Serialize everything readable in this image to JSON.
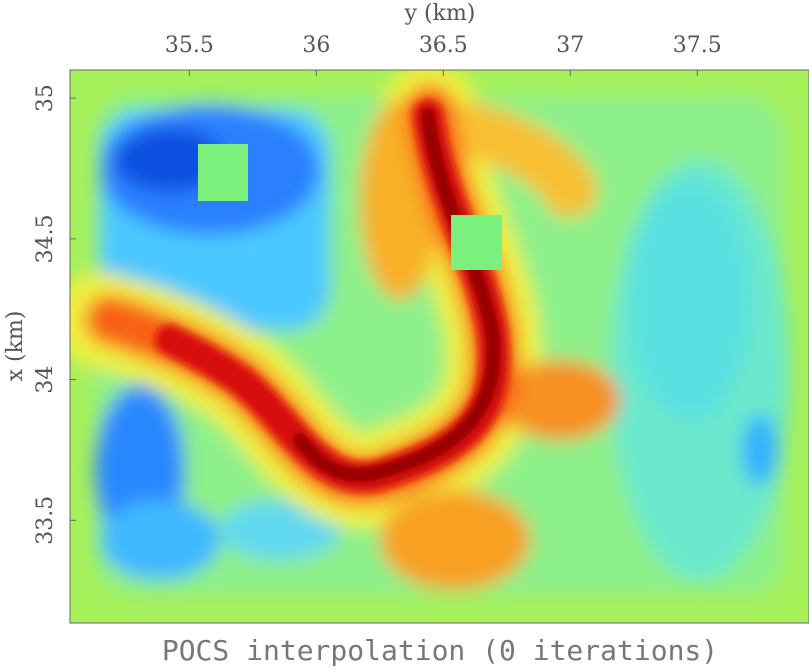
{
  "chart_data": {
    "type": "heatmap",
    "title": "POCS interpolation (0 iterations)",
    "x_label": "y (km)",
    "y_label": "x (km)",
    "xlim": [
      35.03,
      37.94
    ],
    "xticks": [
      35.5,
      36,
      36.5,
      37,
      37.5
    ],
    "ylim": [
      33.135,
      35.1
    ],
    "yticks": [
      35,
      34.5,
      34,
      33.5
    ]
  }
}
